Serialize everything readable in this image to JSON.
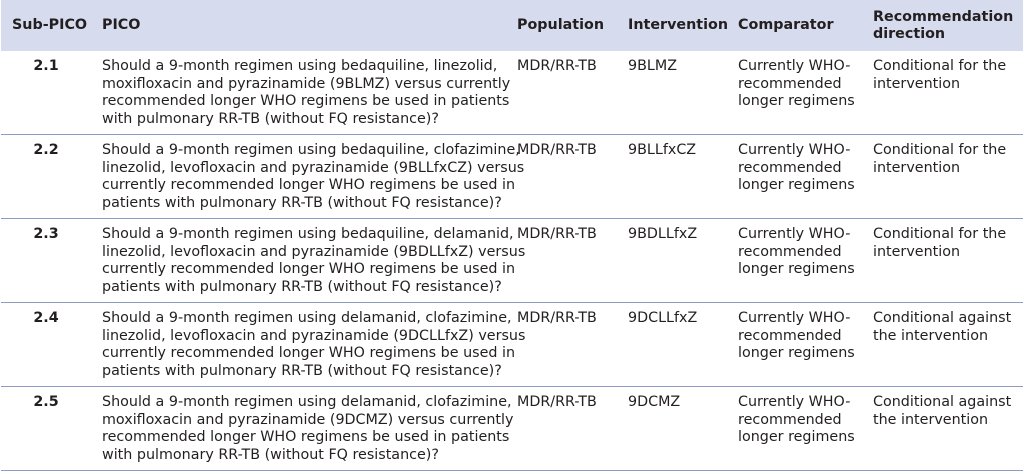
{
  "table": {
    "headers": {
      "sub_pico": "Sub-PICO",
      "pico": "PICO",
      "population": "Population",
      "intervention": "Intervention",
      "comparator": "Comparator",
      "recommendation_line1": "Recommendation",
      "recommendation_line2": "direction"
    },
    "rows": [
      {
        "sub_pico": "2.1",
        "pico_lines": [
          "Should a 9-month regimen using bedaquiline, linezolid,",
          "moxifloxacin and pyrazinamide (9BLMZ) versus currently",
          "recommended longer WHO regimens be used in patients",
          "with pulmonary RR-TB (without FQ resistance)?"
        ],
        "population": "MDR/RR-TB",
        "intervention": "9BLMZ",
        "comparator_lines": [
          "Currently WHO-",
          "recommended",
          "longer regimens"
        ],
        "recommendation_lines": [
          "Conditional for the",
          "intervention"
        ]
      },
      {
        "sub_pico": "2.2",
        "pico_lines": [
          "Should a 9-month regimen using bedaquiline, clofazimine,",
          "linezolid, levofloxacin and pyrazinamide (9BLLfxCZ) versus",
          "currently recommended longer WHO regimens be used in",
          "patients with pulmonary RR-TB (without FQ resistance)?"
        ],
        "population": "MDR/RR-TB",
        "intervention": "9BLLfxCZ",
        "comparator_lines": [
          "Currently WHO-",
          "recommended",
          "longer regimens"
        ],
        "recommendation_lines": [
          "Conditional for the",
          "intervention"
        ]
      },
      {
        "sub_pico": "2.3",
        "pico_lines": [
          "Should a 9-month regimen using bedaquiline, delamanid,",
          "linezolid, levofloxacin and pyrazinamide (9BDLLfxZ) versus",
          "currently recommended longer WHO regimens be used in",
          "patients with pulmonary RR-TB (without FQ resistance)?"
        ],
        "population": "MDR/RR-TB",
        "intervention": "9BDLLfxZ",
        "comparator_lines": [
          "Currently WHO-",
          "recommended",
          "longer regimens"
        ],
        "recommendation_lines": [
          "Conditional for the",
          "intervention"
        ]
      },
      {
        "sub_pico": "2.4",
        "pico_lines": [
          "Should a 9-month regimen using delamanid, clofazimine,",
          "linezolid, levofloxacin and pyrazinamide (9DCLLfxZ) versus",
          "currently recommended longer WHO regimens be used in",
          "patients with pulmonary RR-TB (without FQ resistance)?"
        ],
        "population": "MDR/RR-TB",
        "intervention": "9DCLLfxZ",
        "comparator_lines": [
          "Currently WHO-",
          "recommended",
          "longer regimens"
        ],
        "recommendation_lines": [
          "Conditional against",
          "the intervention"
        ]
      },
      {
        "sub_pico": "2.5",
        "pico_lines": [
          "Should a 9-month regimen using delamanid, clofazimine,",
          "moxifloxacin and pyrazinamide (9DCMZ) versus currently",
          "recommended longer WHO regimens be used in patients",
          "with pulmonary RR-TB (without FQ resistance)?"
        ],
        "population": "MDR/RR-TB",
        "intervention": "9DCMZ",
        "comparator_lines": [
          "Currently WHO-",
          "recommended",
          "longer regimens"
        ],
        "recommendation_lines": [
          "Conditional against",
          "the intervention"
        ]
      }
    ]
  },
  "colors": {
    "header_background": "#d6dbed",
    "row_divider": "#8d9cc4",
    "text": "#231f20"
  }
}
